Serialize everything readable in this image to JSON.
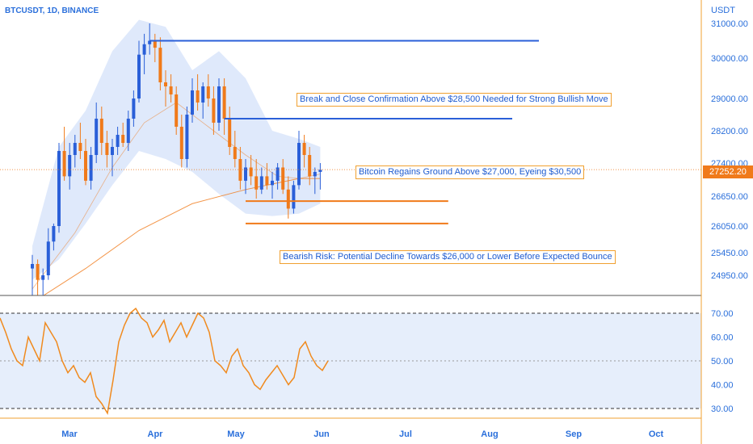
{
  "header": {
    "symbol": "BTCUSDT, 1D, BINANCE",
    "currency": "USDT"
  },
  "colors": {
    "bull": "#2a5fd8",
    "bear": "#f07a1a",
    "band_fill": "#dbe7fb",
    "accent_orange": "#f0a030",
    "rsi_line": "#f08a1e"
  },
  "chart_data": [
    {
      "type": "candlestick",
      "title": "BTCUSDT, 1D, BINANCE",
      "ylabel": "USDT",
      "ylim": [
        24650,
        31200
      ],
      "y_ticks": [
        24950,
        25450,
        26050,
        26650,
        27400,
        28200,
        29000,
        30000,
        31000
      ],
      "x_tick_labels": [
        "Mar",
        "Apr",
        "May",
        "Jun",
        "Jul",
        "Aug",
        "Sep",
        "Oct"
      ],
      "last_price": "27252.20",
      "last_price_value": 27252.2,
      "ohlc": [
        [
          25100,
          25400,
          24700,
          25200
        ],
        [
          25200,
          25300,
          24650,
          24900
        ],
        [
          24900,
          25100,
          24700,
          24950
        ],
        [
          24950,
          26000,
          24900,
          25700
        ],
        [
          25700,
          26100,
          25500,
          26050
        ],
        [
          26050,
          27900,
          25900,
          27700
        ],
        [
          27700,
          28300,
          27000,
          27100
        ],
        [
          27100,
          27900,
          26800,
          27600
        ],
        [
          27600,
          28100,
          27300,
          27900
        ],
        [
          27900,
          28400,
          27500,
          27700
        ],
        [
          27700,
          28000,
          26900,
          27000
        ],
        [
          27000,
          27800,
          26800,
          27600
        ],
        [
          27600,
          28900,
          27400,
          28500
        ],
        [
          28500,
          28800,
          27600,
          27900
        ],
        [
          27900,
          28200,
          27300,
          27600
        ],
        [
          27600,
          28000,
          27100,
          27800
        ],
        [
          27800,
          28300,
          27600,
          28100
        ],
        [
          28100,
          28400,
          27800,
          27900
        ],
        [
          27900,
          28700,
          27700,
          28500
        ],
        [
          28500,
          29200,
          28300,
          29000
        ],
        [
          29000,
          30500,
          28900,
          30100
        ],
        [
          30100,
          30700,
          29600,
          30400
        ],
        [
          30400,
          31000,
          30100,
          30500
        ],
        [
          30500,
          30700,
          29900,
          30300
        ],
        [
          30300,
          30600,
          29200,
          29400
        ],
        [
          29400,
          29700,
          28800,
          29300
        ],
        [
          29300,
          29600,
          28900,
          29100
        ],
        [
          29100,
          29300,
          28100,
          28300
        ],
        [
          28300,
          28600,
          27300,
          27500
        ],
        [
          27500,
          28800,
          27300,
          28600
        ],
        [
          28600,
          29500,
          28400,
          29200
        ],
        [
          29200,
          29600,
          28700,
          28900
        ],
        [
          28900,
          29400,
          28500,
          29300
        ],
        [
          29300,
          29600,
          28800,
          29000
        ],
        [
          29000,
          29300,
          28100,
          28400
        ],
        [
          28400,
          29500,
          28200,
          29300
        ],
        [
          29300,
          29500,
          28100,
          28500
        ],
        [
          28500,
          28800,
          27600,
          27800
        ],
        [
          27800,
          28200,
          27300,
          27500
        ],
        [
          27500,
          27800,
          26800,
          27000
        ],
        [
          27000,
          27500,
          26700,
          27300
        ],
        [
          27300,
          27600,
          26900,
          27100
        ],
        [
          27100,
          27500,
          26600,
          26800
        ],
        [
          26800,
          27300,
          26700,
          27100
        ],
        [
          27100,
          27400,
          26800,
          26900
        ],
        [
          26900,
          27200,
          26600,
          27000
        ],
        [
          27000,
          27400,
          26800,
          27300
        ],
        [
          27300,
          27500,
          26700,
          26800
        ],
        [
          26800,
          27100,
          26200,
          26400
        ],
        [
          26400,
          27000,
          26300,
          26900
        ],
        [
          26900,
          28200,
          26800,
          27900
        ],
        [
          27900,
          28100,
          27300,
          27600
        ],
        [
          27600,
          27800,
          26900,
          27100
        ],
        [
          27100,
          27300,
          26700,
          27200
        ],
        [
          27200,
          27400,
          26800,
          27250
        ]
      ],
      "ma_slow": [
        [
          0,
          24650
        ],
        [
          10,
          25100
        ],
        [
          20,
          25950
        ],
        [
          30,
          26500
        ],
        [
          40,
          26800
        ],
        [
          50,
          27050
        ],
        [
          54,
          27050
        ]
      ],
      "ma_fast": [
        [
          0,
          24800
        ],
        [
          8,
          25900
        ],
        [
          15,
          27300
        ],
        [
          21,
          28400
        ],
        [
          27,
          28900
        ],
        [
          33,
          28300
        ],
        [
          40,
          27600
        ],
        [
          46,
          27100
        ],
        [
          50,
          27050
        ],
        [
          54,
          27150
        ]
      ],
      "band_upper": [
        [
          0,
          25600
        ],
        [
          5,
          27800
        ],
        [
          10,
          28700
        ],
        [
          15,
          30200
        ],
        [
          20,
          31100
        ],
        [
          25,
          30900
        ],
        [
          30,
          29700
        ],
        [
          35,
          30200
        ],
        [
          40,
          29500
        ],
        [
          45,
          28200
        ],
        [
          50,
          28000
        ],
        [
          54,
          27800
        ]
      ],
      "band_lower": [
        [
          0,
          24900
        ],
        [
          5,
          25300
        ],
        [
          10,
          26100
        ],
        [
          15,
          26900
        ],
        [
          20,
          27700
        ],
        [
          25,
          27500
        ],
        [
          30,
          27200
        ],
        [
          35,
          26700
        ],
        [
          40,
          26300
        ],
        [
          45,
          26250
        ],
        [
          50,
          26300
        ],
        [
          54,
          26500
        ]
      ],
      "horizontal_levels": [
        {
          "y": 30500,
          "x_start": 22,
          "x_end": 95,
          "color": "blue"
        },
        {
          "y": 28500,
          "x_start": 36,
          "x_end": 90,
          "color": "blue"
        },
        {
          "y": 26550,
          "x_start": 40,
          "x_end": 78,
          "color": "orange"
        },
        {
          "y": 26100,
          "x_start": 40,
          "x_end": 78,
          "color": "orange"
        }
      ],
      "annotations": [
        "Break and Close Confirmation Above $28,500 Needed for Strong Bullish Move",
        "Bitcoin Regains Ground Above $27,000, Eyeing $30,500",
        "Bearish Risk: Potential Decline Towards $26,000 or Lower Before Expected Bounce"
      ]
    },
    {
      "type": "line",
      "ylim": [
        26,
        74
      ],
      "y_ticks": [
        30,
        40,
        50,
        60,
        70
      ],
      "y_tick_labels": [
        "30.00",
        "40.00",
        "50.00",
        "60.00",
        "70.00"
      ],
      "band": [
        30,
        70
      ],
      "midline": 50,
      "values": [
        68,
        62,
        55,
        50,
        48,
        60,
        55,
        50,
        66,
        62,
        58,
        50,
        45,
        48,
        43,
        41,
        45,
        35,
        32,
        28,
        42,
        58,
        65,
        70,
        72,
        68,
        66,
        60,
        63,
        67,
        58,
        62,
        66,
        60,
        65,
        70,
        68,
        62,
        50,
        48,
        45,
        52,
        55,
        48,
        45,
        40,
        38,
        42,
        45,
        48,
        44,
        40,
        43,
        55,
        58,
        52,
        48,
        46,
        50
      ]
    }
  ]
}
